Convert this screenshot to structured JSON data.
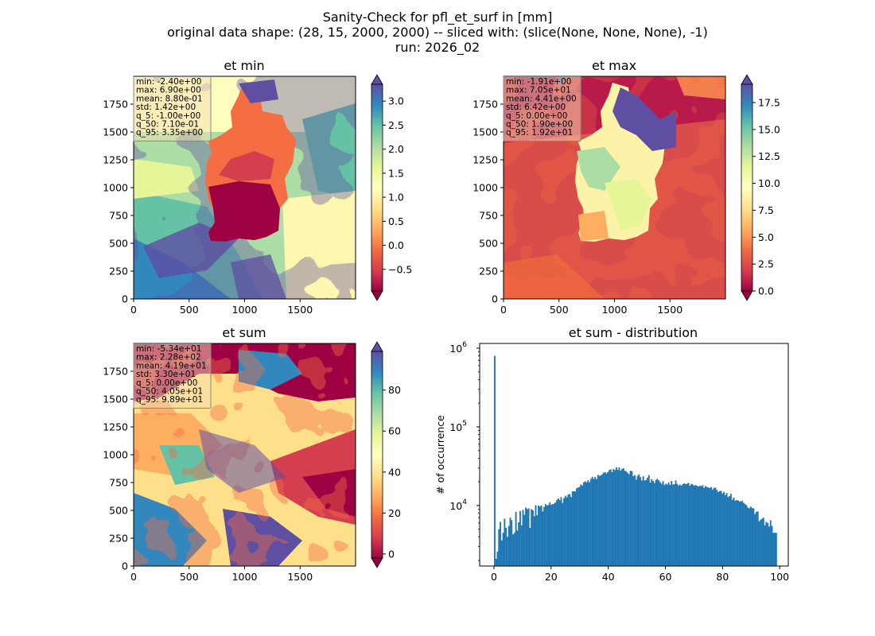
{
  "figure": {
    "title_lines": [
      "Sanity-Check for pfl_et_surf in [mm]",
      "original data shape: (28, 15, 2000, 2000) -- sliced with: (slice(None, None, None), -1)",
      "run: 2026_02"
    ]
  },
  "colors": {
    "histogram_bar": "#1f77b4",
    "spectral_colormap": [
      "#9e0142",
      "#d53e4f",
      "#f46d43",
      "#fdae61",
      "#fee08b",
      "#ffffbf",
      "#e6f598",
      "#abdda4",
      "#66c2a5",
      "#3288bd",
      "#5e4fa2"
    ],
    "stats_box_fill": "#f5deb3"
  },
  "chart_data": [
    {
      "type": "heatmap",
      "title": "et min",
      "colormap": "Spectral",
      "x_ticks": [
        "0",
        "500",
        "1000",
        "1500"
      ],
      "y_ticks": [
        "0",
        "250",
        "500",
        "750",
        "1000",
        "1250",
        "1500",
        "1750"
      ],
      "xlim": [
        0,
        2000
      ],
      "ylim": [
        0,
        2000
      ],
      "colorbar": {
        "ticks": [
          -0.5,
          0.0,
          0.5,
          1.0,
          1.5,
          2.0,
          2.5,
          3.0
        ],
        "tick_labels": [
          "−0.5",
          "0.0",
          "0.5",
          "1.0",
          "1.5",
          "2.0",
          "2.5",
          "3.0"
        ],
        "range": [
          -0.95,
          3.35
        ],
        "extend": "both"
      },
      "stats": [
        "min: -2.40e+00",
        "max: 6.90e+00",
        "mean: 8.80e-01",
        "std: 1.42e+00",
        "q_5: -1.00e+00",
        "q_50: 7.10e-01",
        "q_95: 3.35e+00"
      ]
    },
    {
      "type": "heatmap",
      "title": "et max",
      "colormap": "Spectral",
      "x_ticks": [
        "0",
        "500",
        "1000",
        "1500"
      ],
      "y_ticks": [
        "0",
        "250",
        "500",
        "750",
        "1000",
        "1250",
        "1500",
        "1750"
      ],
      "xlim": [
        0,
        2000
      ],
      "ylim": [
        0,
        2000
      ],
      "colorbar": {
        "ticks": [
          0.0,
          2.5,
          5.0,
          7.5,
          10.0,
          12.5,
          15.0,
          17.5
        ],
        "tick_labels": [
          "0.0",
          "2.5",
          "5.0",
          "7.5",
          "10.0",
          "12.5",
          "15.0",
          "17.5"
        ],
        "range": [
          0.0,
          19.2
        ],
        "extend": "both"
      },
      "stats": [
        "min: -1.91e+00",
        "max: 7.05e+01",
        "mean: 4.41e+00",
        "std: 6.42e+00",
        "q_5: 0.00e+00",
        "q_50: 1.90e+00",
        "q_95: 1.92e+01"
      ]
    },
    {
      "type": "heatmap",
      "title": "et sum",
      "colormap": "Spectral",
      "x_ticks": [
        "0",
        "500",
        "1000",
        "1500"
      ],
      "y_ticks": [
        "0",
        "250",
        "500",
        "750",
        "1000",
        "1250",
        "1500",
        "1750"
      ],
      "xlim": [
        0,
        2000
      ],
      "ylim": [
        0,
        2000
      ],
      "colorbar": {
        "ticks": [
          0,
          20,
          40,
          60,
          80
        ],
        "tick_labels": [
          "0",
          "20",
          "40",
          "60",
          "80"
        ],
        "range": [
          -2,
          98.9
        ],
        "extend": "both"
      },
      "stats": [
        "min: -5.34e+01",
        "max: 2.28e+02",
        "mean: 4.19e+01",
        "std: 3.30e+01",
        "q_5: 0.00e+00",
        "q_50: 4.05e+01",
        "q_95: 9.89e+01"
      ]
    },
    {
      "type": "bar",
      "title": "et sum - distribution",
      "ylabel": "# of occurrence",
      "xlabel": "",
      "y_scale": "log",
      "xlim": [
        -5,
        103
      ],
      "ylim": [
        1700,
        1150000
      ],
      "x_ticks": [
        "0",
        "20",
        "40",
        "60",
        "80",
        "100"
      ],
      "y_ticks": [
        {
          "value": 10000,
          "base": "10",
          "exp": "4"
        },
        {
          "value": 100000,
          "base": "10",
          "exp": "5"
        },
        {
          "value": 1000000,
          "base": "10",
          "exp": "6"
        }
      ],
      "bin_edges_range": [
        0,
        99
      ],
      "bin_count": 200,
      "counts": [
        800000,
        2100,
        2600,
        5000,
        6200,
        3600,
        4500,
        6800,
        5200,
        4000,
        5500,
        7000,
        6500,
        4300,
        4500,
        8300,
        4800,
        6100,
        8500,
        5600,
        8800,
        7600,
        9400,
        9000,
        9200,
        5200,
        9000,
        8700,
        7300,
        10100,
        7500,
        10000,
        9700,
        10000,
        8400,
        9600,
        10400,
        10000,
        10200,
        11000,
        10200,
        10400,
        10600,
        11000,
        11800,
        12300,
        11700,
        12800,
        10800,
        12400,
        13300,
        12700,
        13800,
        14000,
        12800,
        15200,
        15200,
        15100,
        16600,
        16900,
        17300,
        18600,
        18000,
        19800,
        20300,
        19600,
        21000,
        19800,
        21800,
        23200,
        21800,
        23000,
        21700,
        24500,
        23800,
        24200,
        24900,
        26200,
        26500,
        25500,
        26600,
        28200,
        28800,
        26500,
        29100,
        28200,
        30600,
        28400,
        30600,
        27700,
        29200,
        29800,
        27700,
        27200,
        26000,
        25000,
        27700,
        27300,
        23500,
        24300,
        21300,
        23800,
        25000,
        22900,
        20800,
        23500,
        20800,
        21100,
        22600,
        24400,
        19600,
        21600,
        20600,
        19400,
        21200,
        21800,
        20900,
        19800,
        18900,
        20400,
        18200,
        18900,
        18500,
        19700,
        18200,
        20500,
        18500,
        18600,
        20800,
        18800,
        18000,
        18400,
        17900,
        18700,
        19100,
        18700,
        18900,
        19400,
        17800,
        18800,
        18500,
        17800,
        18300,
        17800,
        17400,
        17900,
        17600,
        18100,
        16800,
        17700,
        17200,
        17000,
        16600,
        17200,
        15900,
        16700,
        16900,
        15800,
        14900,
        15200,
        15400,
        14200,
        14900,
        13600,
        14400,
        12800,
        13200,
        14100,
        11800,
        12600,
        11500,
        11700,
        11600,
        11300,
        11300,
        11500,
        10800,
        10400,
        10100,
        9400,
        9200,
        9700,
        9300,
        9200,
        7800,
        8300,
        8400,
        6300,
        6600,
        6800,
        7000,
        5600,
        6200,
        6000,
        5400,
        6500,
        5500,
        4500,
        4500,
        4500
      ]
    }
  ]
}
